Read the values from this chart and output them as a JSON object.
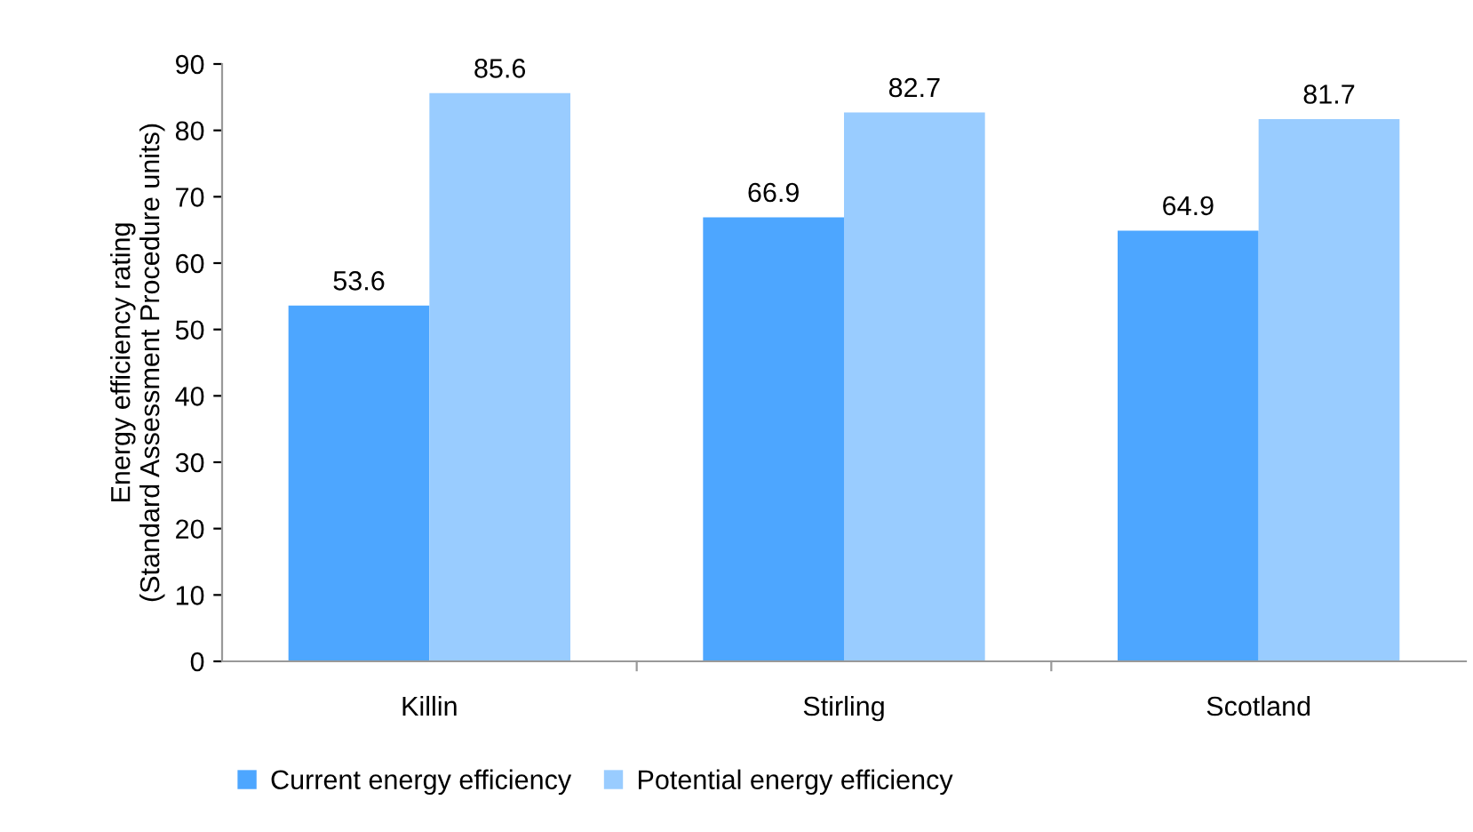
{
  "chart_data": {
    "type": "bar",
    "ylabel": "Energy efficiency rating\n(Standard Assessment Procedure units)",
    "categories": [
      "Killin",
      "Stirling",
      "Scotland"
    ],
    "series": [
      {
        "name": "Current energy efficiency",
        "color": "#4da6ff",
        "values": [
          53.6,
          66.9,
          64.9
        ]
      },
      {
        "name": "Potential energy efficiency",
        "color": "#99ccff",
        "values": [
          85.6,
          82.7,
          81.7
        ]
      }
    ],
    "ylim": [
      0,
      90
    ],
    "yticks": [
      0,
      10,
      20,
      30,
      40,
      50,
      60,
      70,
      80,
      90
    ],
    "grid": false,
    "legend": "bottom",
    "data_labels": true
  }
}
